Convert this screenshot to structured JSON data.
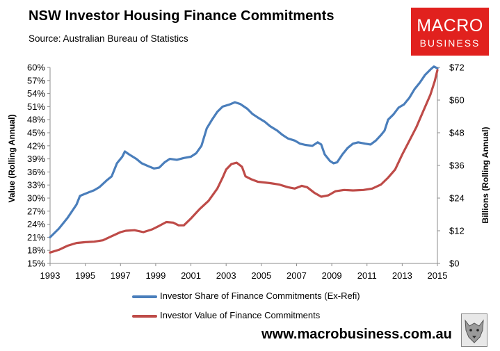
{
  "title": "NSW Investor Housing Finance Commitments",
  "subtitle": "Source: Australian Bureau of Statistics",
  "logo": {
    "line1": "MACRO",
    "line2": "BUSINESS",
    "color": "#e1211e"
  },
  "footer": {
    "website": "www.macrobusiness.com.au"
  },
  "wolf_icon": "wolf-head-icon",
  "chart_data": {
    "type": "line",
    "title": "NSW Investor Housing Finance Commitments",
    "subtitle": "Source: Australian Bureau of Statistics",
    "xlim": [
      1993,
      2015
    ],
    "x_ticks": [
      1993,
      1995,
      1997,
      1999,
      2001,
      2003,
      2005,
      2007,
      2009,
      2011,
      2013,
      2015
    ],
    "x_tick_labels": [
      "1993",
      "1995",
      "1997",
      "1999",
      "2001",
      "2003",
      "2005",
      "2007",
      "2009",
      "2011",
      "2013",
      "2015"
    ],
    "y_left": {
      "label": "Value (Rolling Annual)",
      "lim": [
        15,
        60
      ],
      "ticks": [
        15,
        18,
        21,
        24,
        27,
        30,
        33,
        36,
        39,
        42,
        45,
        48,
        51,
        54,
        57,
        60
      ],
      "tick_labels": [
        "15%",
        "18%",
        "21%",
        "24%",
        "27%",
        "30%",
        "33%",
        "36%",
        "39%",
        "42%",
        "45%",
        "48%",
        "51%",
        "54%",
        "57%",
        "60%"
      ]
    },
    "y_right": {
      "label": "Billions (Rolling Annual)",
      "lim": [
        0,
        72
      ],
      "ticks": [
        0,
        12,
        24,
        36,
        48,
        60,
        72
      ],
      "tick_labels": [
        "$0",
        "$12",
        "$24",
        "$36",
        "$48",
        "$60",
        "$72"
      ]
    },
    "grid": false,
    "legend_position": "bottom",
    "series": [
      {
        "name": "Investor Share of Finance Commitments (Ex-Refi)",
        "axis": "left",
        "color": "#4a7ebb",
        "points": [
          [
            1993.0,
            21.0
          ],
          [
            1993.5,
            23.0
          ],
          [
            1994.0,
            25.5
          ],
          [
            1994.5,
            28.5
          ],
          [
            1994.7,
            30.5
          ],
          [
            1995.0,
            31.0
          ],
          [
            1995.5,
            31.8
          ],
          [
            1995.8,
            32.5
          ],
          [
            1996.2,
            34.0
          ],
          [
            1996.5,
            35.0
          ],
          [
            1996.8,
            38.0
          ],
          [
            1997.1,
            39.5
          ],
          [
            1997.25,
            40.7
          ],
          [
            1997.5,
            40.0
          ],
          [
            1997.9,
            39.0
          ],
          [
            1998.2,
            38.0
          ],
          [
            1998.6,
            37.3
          ],
          [
            1998.9,
            36.8
          ],
          [
            1999.2,
            37.0
          ],
          [
            1999.5,
            38.2
          ],
          [
            1999.8,
            39.0
          ],
          [
            2000.2,
            38.8
          ],
          [
            2000.6,
            39.2
          ],
          [
            2001.0,
            39.5
          ],
          [
            2001.3,
            40.3
          ],
          [
            2001.6,
            42.0
          ],
          [
            2001.9,
            46.0
          ],
          [
            2002.2,
            48.0
          ],
          [
            2002.5,
            49.8
          ],
          [
            2002.8,
            51.0
          ],
          [
            2003.2,
            51.5
          ],
          [
            2003.5,
            52.0
          ],
          [
            2003.8,
            51.6
          ],
          [
            2004.2,
            50.5
          ],
          [
            2004.5,
            49.3
          ],
          [
            2004.8,
            48.5
          ],
          [
            2005.2,
            47.5
          ],
          [
            2005.5,
            46.5
          ],
          [
            2005.9,
            45.5
          ],
          [
            2006.2,
            44.5
          ],
          [
            2006.5,
            43.7
          ],
          [
            2006.9,
            43.2
          ],
          [
            2007.2,
            42.5
          ],
          [
            2007.5,
            42.2
          ],
          [
            2007.9,
            42.0
          ],
          [
            2008.2,
            42.8
          ],
          [
            2008.4,
            42.3
          ],
          [
            2008.6,
            40.0
          ],
          [
            2008.9,
            38.5
          ],
          [
            2009.1,
            38.0
          ],
          [
            2009.3,
            38.2
          ],
          [
            2009.6,
            40.0
          ],
          [
            2009.9,
            41.5
          ],
          [
            2010.2,
            42.5
          ],
          [
            2010.5,
            42.8
          ],
          [
            2010.9,
            42.5
          ],
          [
            2011.2,
            42.3
          ],
          [
            2011.5,
            43.2
          ],
          [
            2011.8,
            44.5
          ],
          [
            2012.0,
            45.5
          ],
          [
            2012.2,
            48.0
          ],
          [
            2012.5,
            49.2
          ],
          [
            2012.8,
            50.8
          ],
          [
            2013.1,
            51.5
          ],
          [
            2013.4,
            53.0
          ],
          [
            2013.7,
            55.0
          ],
          [
            2014.0,
            56.5
          ],
          [
            2014.3,
            58.3
          ],
          [
            2014.6,
            59.5
          ],
          [
            2014.8,
            60.2
          ],
          [
            2015.0,
            59.8
          ]
        ]
      },
      {
        "name": "Investor Value of Finance Commitments",
        "axis": "right",
        "color": "#be4b48",
        "points": [
          [
            1993.0,
            4.0
          ],
          [
            1993.5,
            5.0
          ],
          [
            1994.0,
            6.5
          ],
          [
            1994.5,
            7.5
          ],
          [
            1995.0,
            7.8
          ],
          [
            1995.5,
            8.0
          ],
          [
            1996.0,
            8.5
          ],
          [
            1996.5,
            10.0
          ],
          [
            1997.0,
            11.5
          ],
          [
            1997.3,
            12.0
          ],
          [
            1997.8,
            12.2
          ],
          [
            1998.3,
            11.5
          ],
          [
            1998.8,
            12.5
          ],
          [
            1999.2,
            13.8
          ],
          [
            1999.6,
            15.2
          ],
          [
            2000.0,
            15.0
          ],
          [
            2000.3,
            14.0
          ],
          [
            2000.6,
            14.0
          ],
          [
            2001.0,
            16.5
          ],
          [
            2001.5,
            20.0
          ],
          [
            2002.0,
            23.0
          ],
          [
            2002.5,
            27.5
          ],
          [
            2002.8,
            31.5
          ],
          [
            2003.0,
            34.5
          ],
          [
            2003.3,
            36.5
          ],
          [
            2003.6,
            37.0
          ],
          [
            2003.9,
            35.5
          ],
          [
            2004.1,
            32.0
          ],
          [
            2004.4,
            31.0
          ],
          [
            2004.8,
            30.0
          ],
          [
            2005.5,
            29.5
          ],
          [
            2006.0,
            29.0
          ],
          [
            2006.5,
            28.0
          ],
          [
            2006.9,
            27.5
          ],
          [
            2007.3,
            28.5
          ],
          [
            2007.6,
            28.0
          ],
          [
            2008.0,
            26.0
          ],
          [
            2008.4,
            24.5
          ],
          [
            2008.8,
            25.0
          ],
          [
            2009.2,
            26.5
          ],
          [
            2009.7,
            27.0
          ],
          [
            2010.2,
            26.8
          ],
          [
            2010.8,
            27.0
          ],
          [
            2011.3,
            27.5
          ],
          [
            2011.8,
            29.0
          ],
          [
            2012.2,
            31.5
          ],
          [
            2012.6,
            34.5
          ],
          [
            2013.0,
            40.0
          ],
          [
            2013.4,
            45.0
          ],
          [
            2013.8,
            50.0
          ],
          [
            2014.2,
            56.0
          ],
          [
            2014.6,
            62.0
          ],
          [
            2014.85,
            67.0
          ],
          [
            2015.0,
            71.0
          ]
        ]
      }
    ]
  }
}
